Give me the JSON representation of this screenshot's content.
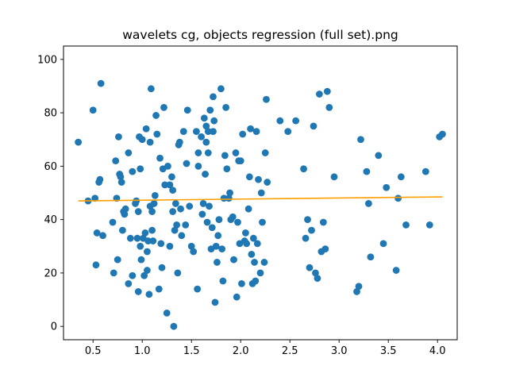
{
  "chart_data": {
    "type": "scatter",
    "title": "wavelets cg, objects regression (full set).png",
    "xlabel": "",
    "ylabel": "",
    "xlim": [
      0.2,
      4.2
    ],
    "ylim": [
      -5,
      105
    ],
    "xticks": [
      0.5,
      1.0,
      1.5,
      2.0,
      2.5,
      3.0,
      3.5,
      4.0
    ],
    "xtick_labels": [
      "0.5",
      "1.0",
      "1.5",
      "2.0",
      "2.5",
      "3.0",
      "3.5",
      "4.0"
    ],
    "yticks": [
      0,
      20,
      40,
      60,
      80,
      100
    ],
    "ytick_labels": [
      "0",
      "20",
      "40",
      "60",
      "80",
      "100"
    ],
    "grid": false,
    "legend": false,
    "colors": {
      "points": "#1f77b4",
      "regression": "#ff9f00"
    },
    "series": [
      {
        "type": "scatter",
        "points": [
          [
            0.35,
            69
          ],
          [
            0.45,
            47
          ],
          [
            0.5,
            81
          ],
          [
            0.52,
            48
          ],
          [
            0.53,
            23
          ],
          [
            0.54,
            35
          ],
          [
            0.56,
            54
          ],
          [
            0.57,
            55
          ],
          [
            0.58,
            91
          ],
          [
            0.6,
            34
          ],
          [
            0.7,
            39
          ],
          [
            0.71,
            20
          ],
          [
            0.73,
            62
          ],
          [
            0.74,
            48
          ],
          [
            0.75,
            25
          ],
          [
            0.76,
            71
          ],
          [
            0.77,
            57
          ],
          [
            0.78,
            56
          ],
          [
            0.79,
            54
          ],
          [
            0.8,
            36
          ],
          [
            0.81,
            43
          ],
          [
            0.82,
            42
          ],
          [
            0.83,
            44
          ],
          [
            0.86,
            65
          ],
          [
            0.86,
            16
          ],
          [
            0.88,
            33
          ],
          [
            0.9,
            58
          ],
          [
            0.9,
            19
          ],
          [
            0.93,
            46
          ],
          [
            0.94,
            47
          ],
          [
            0.95,
            33
          ],
          [
            0.96,
            43
          ],
          [
            0.96,
            13
          ],
          [
            0.97,
            71
          ],
          [
            0.98,
            30
          ],
          [
            0.98,
            59
          ],
          [
            0.99,
            25
          ],
          [
            1.0,
            70
          ],
          [
            1.01,
            33
          ],
          [
            1.02,
            19
          ],
          [
            1.03,
            35
          ],
          [
            1.04,
            74
          ],
          [
            1.05,
            28
          ],
          [
            1.05,
            21
          ],
          [
            1.06,
            32
          ],
          [
            1.07,
            12
          ],
          [
            1.08,
            45
          ],
          [
            1.08,
            69
          ],
          [
            1.09,
            89
          ],
          [
            1.1,
            36
          ],
          [
            1.1,
            43
          ],
          [
            1.11,
            32
          ],
          [
            1.12,
            46
          ],
          [
            1.13,
            49
          ],
          [
            1.14,
            79
          ],
          [
            1.15,
            72
          ],
          [
            1.17,
            14
          ],
          [
            1.18,
            63
          ],
          [
            1.19,
            31
          ],
          [
            1.2,
            22
          ],
          [
            1.21,
            59
          ],
          [
            1.22,
            82
          ],
          [
            1.23,
            53
          ],
          [
            1.25,
            5
          ],
          [
            1.26,
            60
          ],
          [
            1.28,
            30
          ],
          [
            1.28,
            53
          ],
          [
            1.3,
            56
          ],
          [
            1.31,
            51
          ],
          [
            1.31,
            43
          ],
          [
            1.32,
            0
          ],
          [
            1.33,
            36
          ],
          [
            1.34,
            46
          ],
          [
            1.35,
            38
          ],
          [
            1.36,
            20
          ],
          [
            1.37,
            68
          ],
          [
            1.38,
            69
          ],
          [
            1.39,
            44
          ],
          [
            1.4,
            34
          ],
          [
            1.42,
            73
          ],
          [
            1.44,
            38
          ],
          [
            1.45,
            61
          ],
          [
            1.46,
            81
          ],
          [
            1.48,
            45
          ],
          [
            1.5,
            30
          ],
          [
            1.52,
            28
          ],
          [
            1.55,
            73
          ],
          [
            1.56,
            14
          ],
          [
            1.57,
            65
          ],
          [
            1.57,
            60
          ],
          [
            1.6,
            71
          ],
          [
            1.61,
            42
          ],
          [
            1.62,
            46
          ],
          [
            1.63,
            78
          ],
          [
            1.64,
            57
          ],
          [
            1.65,
            75
          ],
          [
            1.65,
            69
          ],
          [
            1.66,
            39
          ],
          [
            1.67,
            73
          ],
          [
            1.67,
            65
          ],
          [
            1.68,
            45
          ],
          [
            1.69,
            81
          ],
          [
            1.7,
            29
          ],
          [
            1.71,
            37
          ],
          [
            1.72,
            86
          ],
          [
            1.72,
            73
          ],
          [
            1.73,
            77
          ],
          [
            1.74,
            9
          ],
          [
            1.75,
            30
          ],
          [
            1.76,
            24
          ],
          [
            1.77,
            34
          ],
          [
            1.78,
            40
          ],
          [
            1.8,
            89
          ],
          [
            1.81,
            29
          ],
          [
            1.82,
            17
          ],
          [
            1.83,
            48
          ],
          [
            1.84,
            64
          ],
          [
            1.85,
            82
          ],
          [
            1.86,
            59
          ],
          [
            1.88,
            48
          ],
          [
            1.89,
            50
          ],
          [
            1.9,
            40
          ],
          [
            1.92,
            41
          ],
          [
            1.93,
            25
          ],
          [
            1.95,
            65
          ],
          [
            1.96,
            11
          ],
          [
            1.97,
            39
          ],
          [
            1.98,
            62
          ],
          [
            1.99,
            31
          ],
          [
            2.0,
            62
          ],
          [
            2.01,
            16
          ],
          [
            2.02,
            72
          ],
          [
            2.04,
            32
          ],
          [
            2.05,
            35
          ],
          [
            2.06,
            31
          ],
          [
            2.08,
            44
          ],
          [
            2.09,
            56
          ],
          [
            2.1,
            74
          ],
          [
            2.11,
            27
          ],
          [
            2.12,
            16
          ],
          [
            2.13,
            33
          ],
          [
            2.14,
            24
          ],
          [
            2.15,
            17
          ],
          [
            2.16,
            73
          ],
          [
            2.17,
            31
          ],
          [
            2.18,
            55
          ],
          [
            2.2,
            20
          ],
          [
            2.21,
            50
          ],
          [
            2.22,
            39
          ],
          [
            2.24,
            24
          ],
          [
            2.25,
            65
          ],
          [
            2.26,
            85
          ],
          [
            2.27,
            54
          ],
          [
            2.4,
            77
          ],
          [
            2.48,
            73
          ],
          [
            2.56,
            77
          ],
          [
            2.64,
            59
          ],
          [
            2.66,
            33
          ],
          [
            2.68,
            40
          ],
          [
            2.7,
            22
          ],
          [
            2.72,
            36
          ],
          [
            2.74,
            75
          ],
          [
            2.76,
            20
          ],
          [
            2.78,
            18
          ],
          [
            2.8,
            87
          ],
          [
            2.82,
            28
          ],
          [
            2.84,
            39
          ],
          [
            2.86,
            29
          ],
          [
            2.88,
            88
          ],
          [
            2.9,
            82
          ],
          [
            2.95,
            56
          ],
          [
            3.18,
            13
          ],
          [
            3.2,
            15
          ],
          [
            3.22,
            70
          ],
          [
            3.28,
            58
          ],
          [
            3.3,
            46
          ],
          [
            3.32,
            26
          ],
          [
            3.4,
            64
          ],
          [
            3.45,
            31
          ],
          [
            3.48,
            52
          ],
          [
            3.58,
            21
          ],
          [
            3.6,
            48
          ],
          [
            3.63,
            56
          ],
          [
            3.68,
            38
          ],
          [
            3.88,
            58
          ],
          [
            3.92,
            38
          ],
          [
            4.02,
            71
          ],
          [
            4.05,
            72
          ]
        ]
      },
      {
        "type": "line",
        "name": "",
        "x": [
          0.35,
          4.05
        ],
        "y": [
          47.0,
          48.5
        ]
      }
    ]
  }
}
